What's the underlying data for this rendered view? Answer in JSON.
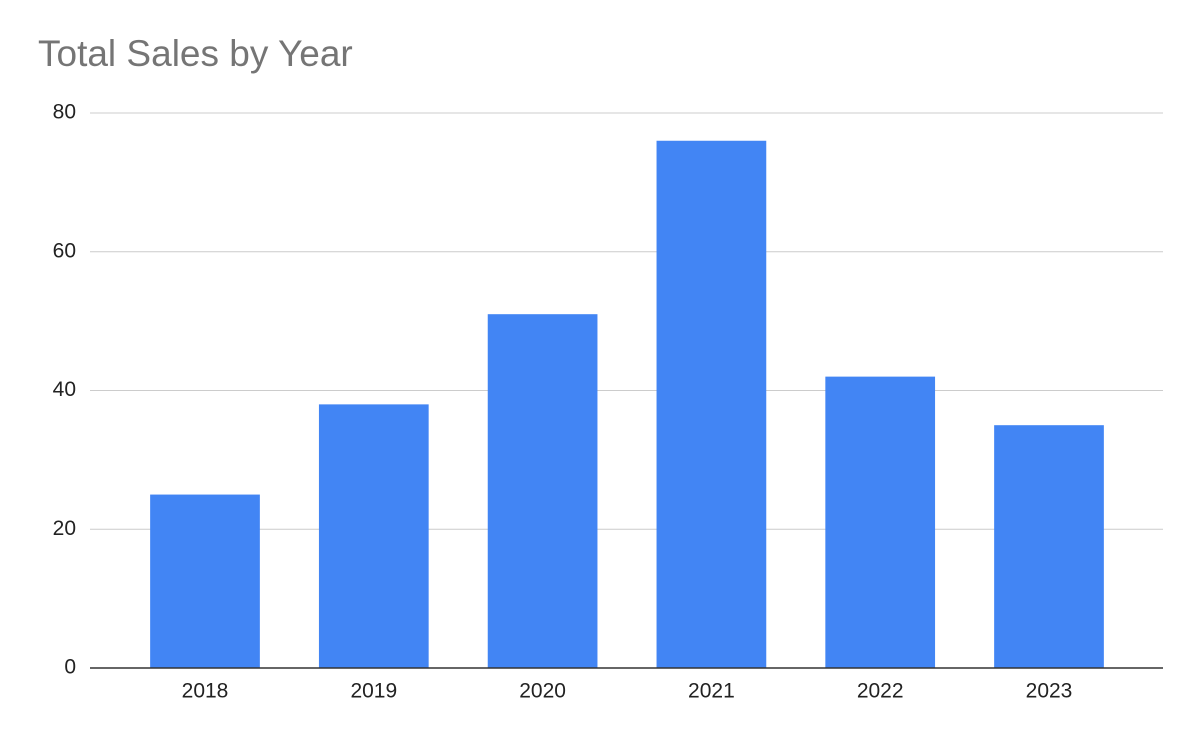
{
  "chart_data": {
    "type": "bar",
    "title": "Total Sales by Year",
    "categories": [
      "2018",
      "2019",
      "2020",
      "2021",
      "2022",
      "2023"
    ],
    "values": [
      25,
      38,
      51,
      76,
      42,
      35
    ],
    "color": "#4285f4",
    "ylim": [
      0,
      80
    ],
    "yticks": [
      0,
      20,
      40,
      60,
      80
    ],
    "grid": true
  }
}
